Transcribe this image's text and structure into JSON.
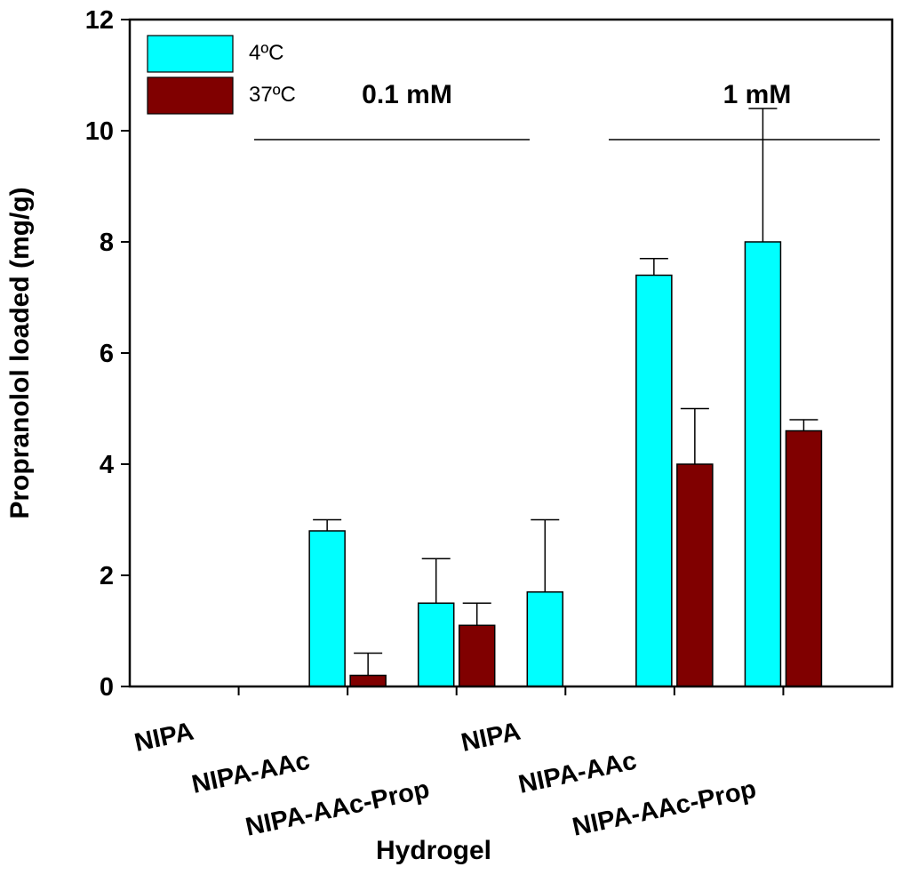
{
  "chart_data": {
    "type": "bar",
    "xlabel": "Hydrogel",
    "ylabel": "Propranolol loaded (mg/g)",
    "ylim": [
      0,
      12
    ],
    "yticks": [
      "0",
      "2",
      "4",
      "6",
      "8",
      "10",
      "12"
    ],
    "categories": [
      "NIPA",
      "NIPA-AAc",
      "NIPA-AAc-Prop",
      "NIPA",
      "NIPA-AAc",
      "NIPA-AAc-Prop"
    ],
    "groups": [
      {
        "label": "0.1 mM",
        "categories": [
          0,
          1,
          2
        ]
      },
      {
        "label": "1 mM",
        "categories": [
          3,
          4,
          5
        ]
      }
    ],
    "series": [
      {
        "name": "4ºC",
        "color": "#00FFFF",
        "values": [
          0,
          2.8,
          1.5,
          1.7,
          7.4,
          8.0
        ],
        "errors": [
          0,
          0.2,
          0.8,
          1.3,
          0.3,
          2.4
        ]
      },
      {
        "name": "37ºC",
        "color": "#800000",
        "values": [
          0,
          0.2,
          1.1,
          0,
          4.0,
          4.6
        ],
        "errors": [
          0,
          0.4,
          0.4,
          0,
          1.0,
          0.2
        ]
      }
    ],
    "grid": false,
    "legend": "top-left"
  }
}
